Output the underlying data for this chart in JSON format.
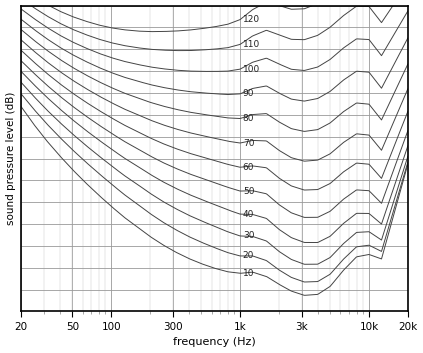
{
  "title": "",
  "xlabel": "frequency (Hz)",
  "ylabel": "sound pressure level (dB)",
  "xmin": 20,
  "xmax": 20000,
  "ymin": -10,
  "ymax": 130,
  "phon_levels": [
    10,
    20,
    30,
    40,
    50,
    60,
    70,
    80,
    90,
    100,
    110,
    120
  ],
  "background_color": "#ffffff",
  "line_color": "#444444",
  "grid_color_major": "#999999",
  "grid_color_minor": "#cccccc",
  "label_color": "#222222",
  "axis_color": "#000000",
  "label_freq": 1000
}
